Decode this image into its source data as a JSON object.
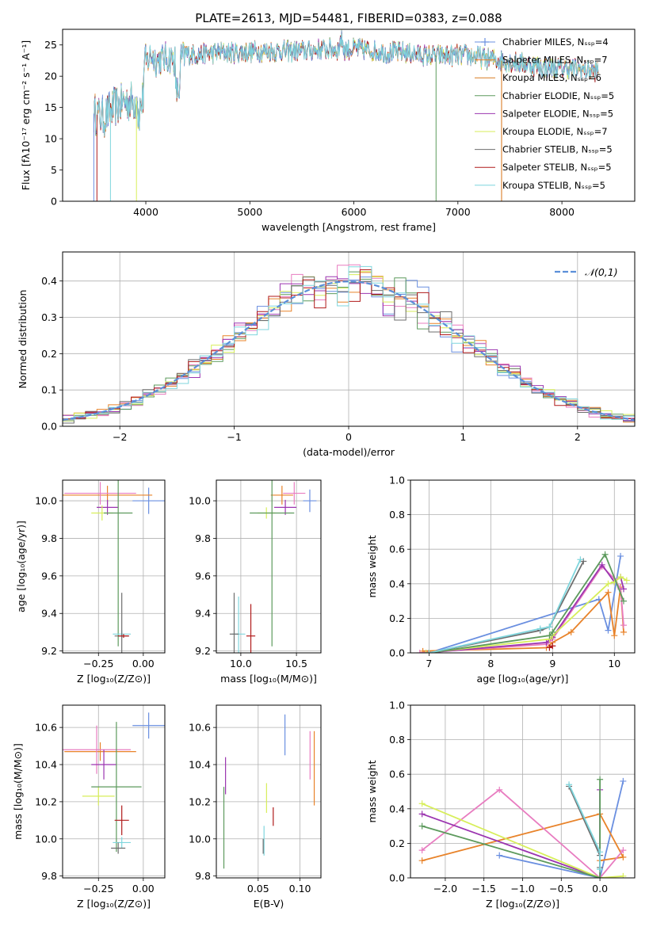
{
  "figure_title": "PLATE=2613, MJD=54481, FIBERID=0383, z=0.088",
  "colors": {
    "Chabrier MILES": "#6a8fe0",
    "Salpeter MILES": "#e8832a",
    "Kroupa MILES": "#d97a20",
    "Chabrier ELODIE": "#5d9a5d",
    "Salpeter ELODIE": "#9b35b0",
    "Kroupa ELODIE": "#d7ee5a",
    "Chabrier STELIB": "#6e6e6e",
    "Salpeter STELIB": "#b01a1a",
    "Kroupa STELIB": "#7fd6dd",
    "pink": "#e87cc0",
    "gaussian": "#5b8fd8"
  },
  "chart_data": [
    {
      "id": "spectrum",
      "type": "line",
      "xlabel": "wavelength [Angstrom, rest frame]",
      "ylabel": "Flux [fλ10⁻¹⁷ erg cm⁻² s⁻¹ A⁻¹]",
      "xlim": [
        3200,
        8700
      ],
      "ylim": [
        0,
        27.5
      ],
      "xticks": [
        4000,
        5000,
        6000,
        7000,
        8000
      ],
      "yticks": [
        0,
        5,
        10,
        15,
        20,
        25
      ],
      "grid": false,
      "legend_position": "right",
      "series": [
        {
          "name": "Chabrier MILES, Nₛₛₚ=4",
          "color": "#6a8fe0"
        },
        {
          "name": "Salpeter MILES, Nₛₛₚ=7",
          "color": "#e8832a"
        },
        {
          "name": "Kroupa MILES, Nₛₛₚ=6",
          "color": "#d97a20"
        },
        {
          "name": "Chabrier ELODIE, Nₛₛₚ=5",
          "color": "#5d9a5d"
        },
        {
          "name": "Salpeter ELODIE, Nₛₛₚ=5",
          "color": "#9b35b0"
        },
        {
          "name": "Kroupa ELODIE, Nₛₛₚ=7",
          "color": "#d7ee5a"
        },
        {
          "name": "Chabrier STELIB, Nₛₛₚ=5",
          "color": "#6e6e6e"
        },
        {
          "name": "Salpeter STELIB, Nₛₛₚ=5",
          "color": "#b01a1a"
        },
        {
          "name": "Kroupa STELIB, Nₛₛₚ=5",
          "color": "#7fd6dd"
        }
      ],
      "continuum": {
        "x": [
          3500,
          3600,
          3700,
          3800,
          3900,
          3950,
          4000,
          4050,
          4100,
          4200,
          4300,
          4400,
          4500,
          4700,
          4900,
          5100,
          5300,
          5500,
          5700,
          5900,
          6100,
          6300,
          6500,
          6700,
          6900,
          7100,
          7300,
          7500,
          7700,
          7900,
          8100,
          8300
        ],
        "y": [
          14,
          13.5,
          15,
          16,
          16,
          19,
          22,
          23.5,
          22.5,
          23,
          22.5,
          23.5,
          23.5,
          23.8,
          23.8,
          24,
          24,
          24,
          24.3,
          24.3,
          24.3,
          23.8,
          23.8,
          23.3,
          23.3,
          23.3,
          22.8,
          22.3,
          21.8,
          21.3,
          21.3,
          20.8
        ]
      }
    },
    {
      "id": "residuals",
      "type": "histogram",
      "xlabel": "(data-model)/error",
      "ylabel": "Normed distribution",
      "xlim": [
        -2.5,
        2.5
      ],
      "ylim": [
        0,
        0.48
      ],
      "xticks": [
        -2,
        -1,
        0,
        1,
        2
      ],
      "yticks": [
        0.0,
        0.1,
        0.2,
        0.3,
        0.4
      ],
      "grid": true,
      "legend": {
        "label": "𝒩(0,1)",
        "position": "upper right",
        "style": "dashed",
        "color": "#5b8fd8"
      },
      "bin_width": 0.1
    },
    {
      "id": "age_vs_Z",
      "type": "scatter",
      "xlabel": "Z [log₁₀(Z/Z⊙)]",
      "ylabel": "age  [log₁₀(age/yr)]",
      "xlim": [
        -0.45,
        0.12
      ],
      "ylim": [
        9.19,
        10.11
      ],
      "xticks": [
        -0.25,
        0.0
      ],
      "yticks": [
        9.2,
        9.4,
        9.6,
        9.8,
        10.0
      ],
      "grid": true,
      "points": [
        {
          "x": 0.03,
          "y": 10.0,
          "xerr": 0.09,
          "yerr": 0.07,
          "color": "#6a8fe0"
        },
        {
          "x": -0.2,
          "y": 10.03,
          "xerr": 0.25,
          "yerr": 0.05,
          "color": "#e8832a"
        },
        {
          "x": -0.24,
          "y": 10.04,
          "xerr": 0.2,
          "yerr": 0.06,
          "color": "#e87cc0"
        },
        {
          "x": -0.2,
          "y": 9.965,
          "xerr": 0.06,
          "yerr": 0.04,
          "color": "#9b35b0"
        },
        {
          "x": -0.23,
          "y": 9.935,
          "xerr": 0.06,
          "yerr": 0.04,
          "color": "#d7ee5a"
        },
        {
          "x": -0.14,
          "y": 9.935,
          "xerr": 0.08,
          "yerr": 0.71,
          "color": "#5d9a5d"
        },
        {
          "x": -0.12,
          "y": 9.29,
          "xerr": 0.05,
          "yerr": 0.02,
          "color": "#7fd6dd"
        },
        {
          "x": -0.12,
          "y": 9.28,
          "xerr": 0.04,
          "yerr": 0.23,
          "color": "#6e6e6e"
        },
        {
          "x": -0.11,
          "y": 9.28,
          "xerr": 0.03,
          "yerr": 0.01,
          "color": "#b01a1a"
        }
      ]
    },
    {
      "id": "age_vs_mass",
      "type": "scatter",
      "xlabel": "mass [log₁₀(M/M⊙)]",
      "ylabel": "",
      "xlim": [
        9.78,
        10.72
      ],
      "ylim": [
        9.19,
        10.11
      ],
      "xticks": [
        10.0,
        10.5
      ],
      "yticks": [
        9.2,
        9.4,
        9.6,
        9.8,
        10.0
      ],
      "grid": true,
      "points": [
        {
          "x": 10.62,
          "y": 10.0,
          "xerr": 0.06,
          "yerr": 0.06,
          "color": "#6a8fe0"
        },
        {
          "x": 10.37,
          "y": 10.03,
          "xerr": 0.1,
          "yerr": 0.05,
          "color": "#e8832a"
        },
        {
          "x": 10.48,
          "y": 10.04,
          "xerr": 0.1,
          "yerr": 0.06,
          "color": "#e87cc0"
        },
        {
          "x": 10.4,
          "y": 9.965,
          "xerr": 0.1,
          "yerr": 0.04,
          "color": "#9b35b0"
        },
        {
          "x": 10.23,
          "y": 9.935,
          "xerr": 0.08,
          "yerr": 0.03,
          "color": "#d7ee5a"
        },
        {
          "x": 10.28,
          "y": 9.935,
          "xerr": 0.2,
          "yerr": 0.71,
          "color": "#5d9a5d"
        },
        {
          "x": 9.98,
          "y": 9.29,
          "xerr": 0.06,
          "yerr": 0.2,
          "color": "#7fd6dd"
        },
        {
          "x": 9.94,
          "y": 9.29,
          "xerr": 0.04,
          "yerr": 0.22,
          "color": "#6e6e6e"
        },
        {
          "x": 10.09,
          "y": 9.28,
          "xerr": 0.04,
          "yerr": 0.17,
          "color": "#b01a1a"
        }
      ]
    },
    {
      "id": "massweight_vs_age",
      "type": "line",
      "xlabel": "age  [log₁₀(age/yr)]",
      "ylabel": "mass weight",
      "xlim": [
        6.7,
        10.33
      ],
      "ylim": [
        0,
        1.0
      ],
      "xticks": [
        7,
        8,
        9,
        10
      ],
      "yticks": [
        0.0,
        0.2,
        0.4,
        0.6,
        0.8,
        1.0
      ],
      "grid": true,
      "series": [
        {
          "color": "#6a8fe0",
          "x": [
            7.0,
            9.75,
            9.9,
            10.1
          ],
          "y": [
            0.0,
            0.31,
            0.13,
            0.56
          ]
        },
        {
          "color": "#e8832a",
          "x": [
            6.9,
            8.9,
            9.0,
            9.3,
            9.9,
            10.0,
            10.1,
            10.15
          ],
          "y": [
            0.01,
            0.03,
            0.06,
            0.12,
            0.35,
            0.1,
            0.38,
            0.12
          ]
        },
        {
          "color": "#e87cc0",
          "x": [
            6.85,
            8.9,
            9.0,
            9.8,
            10.0,
            10.1,
            10.15
          ],
          "y": [
            0.0,
            0.05,
            0.08,
            0.5,
            0.43,
            0.37,
            0.16
          ]
        },
        {
          "color": "#9b35b0",
          "x": [
            6.95,
            8.9,
            9.0,
            9.8,
            10.0,
            10.1,
            10.15
          ],
          "y": [
            0.0,
            0.06,
            0.09,
            0.51,
            0.41,
            0.44,
            0.37
          ]
        },
        {
          "color": "#d7ee5a",
          "x": [
            6.95,
            8.95,
            9.0,
            9.9,
            10.0,
            10.1,
            10.2
          ],
          "y": [
            0.0,
            0.08,
            0.1,
            0.4,
            0.41,
            0.44,
            0.42
          ]
        },
        {
          "color": "#5d9a5d",
          "x": [
            7.0,
            8.95,
            9.0,
            9.85,
            10.15
          ],
          "y": [
            0.0,
            0.1,
            0.12,
            0.57,
            0.3
          ]
        },
        {
          "color": "#6e6e6e",
          "x": [
            7.0,
            8.8,
            8.95,
            9.5
          ],
          "y": [
            0.0,
            0.13,
            0.15,
            0.53
          ]
        },
        {
          "color": "#7fd6dd",
          "x": [
            7.0,
            8.8,
            8.95,
            9.45
          ],
          "y": [
            0.0,
            0.14,
            0.15,
            0.54
          ]
        },
        {
          "color": "#b01a1a",
          "x": [
            8.95,
            9.0
          ],
          "y": [
            0.03,
            0.04
          ]
        }
      ]
    },
    {
      "id": "mass_vs_Z",
      "type": "scatter",
      "xlabel": "Z [log₁₀(Z/Z⊙)]",
      "ylabel": "mass [log₁₀(M/M⊙)]",
      "xlim": [
        -0.45,
        0.12
      ],
      "ylim": [
        9.79,
        10.72
      ],
      "xticks": [
        -0.25,
        0.0
      ],
      "yticks": [
        9.8,
        10.0,
        10.2,
        10.4,
        10.6
      ],
      "grid": true,
      "points": [
        {
          "x": 0.03,
          "y": 10.61,
          "xerr": 0.09,
          "yerr": 0.07,
          "color": "#6a8fe0"
        },
        {
          "x": -0.24,
          "y": 10.47,
          "xerr": 0.2,
          "yerr": 0.05,
          "color": "#e8832a"
        },
        {
          "x": -0.26,
          "y": 10.48,
          "xerr": 0.19,
          "yerr": 0.13,
          "color": "#e87cc0"
        },
        {
          "x": -0.22,
          "y": 10.4,
          "xerr": 0.07,
          "yerr": 0.08,
          "color": "#9b35b0"
        },
        {
          "x": -0.25,
          "y": 10.23,
          "xerr": 0.09,
          "yerr": 0.05,
          "color": "#d7ee5a"
        },
        {
          "x": -0.15,
          "y": 10.28,
          "xerr": 0.14,
          "yerr": 0.35,
          "color": "#5d9a5d"
        },
        {
          "x": -0.12,
          "y": 9.98,
          "xerr": 0.05,
          "yerr": 0.03,
          "color": "#7fd6dd"
        },
        {
          "x": -0.14,
          "y": 9.95,
          "xerr": 0.04,
          "yerr": 0.03,
          "color": "#6e6e6e"
        },
        {
          "x": -0.12,
          "y": 10.1,
          "xerr": 0.04,
          "yerr": 0.08,
          "color": "#b01a1a"
        }
      ]
    },
    {
      "id": "mass_vs_EBV",
      "type": "scatter",
      "xlabel": "E(B-V)",
      "ylabel": "",
      "xlim": [
        0.0,
        0.125
      ],
      "ylim": [
        9.79,
        10.72
      ],
      "xticks": [
        0.05,
        0.1
      ],
      "yticks": [
        9.8,
        10.0,
        10.2,
        10.4,
        10.6
      ],
      "grid": true,
      "points": [
        {
          "x": 0.082,
          "y": 10.56,
          "xerr": 0.0,
          "yerr": 0.11,
          "color": "#6a8fe0"
        },
        {
          "x": 0.117,
          "y": 10.38,
          "xerr": 0.0,
          "yerr": 0.2,
          "color": "#e8832a"
        },
        {
          "x": 0.112,
          "y": 10.45,
          "xerr": 0.0,
          "yerr": 0.13,
          "color": "#e87cc0"
        },
        {
          "x": 0.011,
          "y": 10.34,
          "xerr": 0.0,
          "yerr": 0.1,
          "color": "#9b35b0"
        },
        {
          "x": 0.06,
          "y": 10.22,
          "xerr": 0.0,
          "yerr": 0.08,
          "color": "#d7ee5a"
        },
        {
          "x": 0.009,
          "y": 10.06,
          "xerr": 0.0,
          "yerr": 0.22,
          "color": "#5d9a5d"
        },
        {
          "x": 0.057,
          "y": 9.99,
          "xerr": 0.0,
          "yerr": 0.08,
          "color": "#7fd6dd"
        },
        {
          "x": 0.056,
          "y": 9.96,
          "xerr": 0.0,
          "yerr": 0.04,
          "color": "#6e6e6e"
        },
        {
          "x": 0.068,
          "y": 10.12,
          "xerr": 0.0,
          "yerr": 0.05,
          "color": "#b01a1a"
        }
      ]
    },
    {
      "id": "massweight_vs_Z",
      "type": "line",
      "xlabel": "Z [log₁₀(Z/Z⊙)]",
      "ylabel": "mass weight",
      "xlim": [
        -2.45,
        0.45
      ],
      "ylim": [
        0,
        1.0
      ],
      "xticks": [
        -2.0,
        -1.5,
        -1.0,
        -0.5,
        0.0
      ],
      "yticks": [
        0.0,
        0.2,
        0.4,
        0.6,
        0.8,
        1.0
      ],
      "grid": true,
      "series": [
        {
          "color": "#6a8fe0",
          "x": [
            -1.3,
            0.0,
            0.3
          ],
          "y": [
            0.13,
            0.0,
            0.56
          ]
        },
        {
          "color": "#e8832a",
          "x": [
            -2.3,
            0.0,
            0.3,
            0.0
          ],
          "y": [
            0.1,
            0.37,
            0.12,
            0.1
          ]
        },
        {
          "color": "#e87cc0",
          "x": [
            -2.3,
            -1.3,
            0.0,
            0.3
          ],
          "y": [
            0.16,
            0.51,
            0.0,
            0.16
          ]
        },
        {
          "color": "#9b35b0",
          "x": [
            -2.3,
            0.0,
            0.0
          ],
          "y": [
            0.37,
            0.0,
            0.51
          ]
        },
        {
          "color": "#d7ee5a",
          "x": [
            -2.3,
            0.0,
            0.3
          ],
          "y": [
            0.43,
            0.0,
            0.01
          ]
        },
        {
          "color": "#5d9a5d",
          "x": [
            -2.3,
            0.0,
            0.0
          ],
          "y": [
            0.3,
            0.0,
            0.57
          ]
        },
        {
          "color": "#6e6e6e",
          "x": [
            -0.4,
            0.0,
            0.0
          ],
          "y": [
            0.53,
            0.13,
            0.06
          ]
        },
        {
          "color": "#7fd6dd",
          "x": [
            -0.4,
            0.0,
            0.0
          ],
          "y": [
            0.54,
            0.15,
            0.05
          ]
        }
      ]
    }
  ]
}
